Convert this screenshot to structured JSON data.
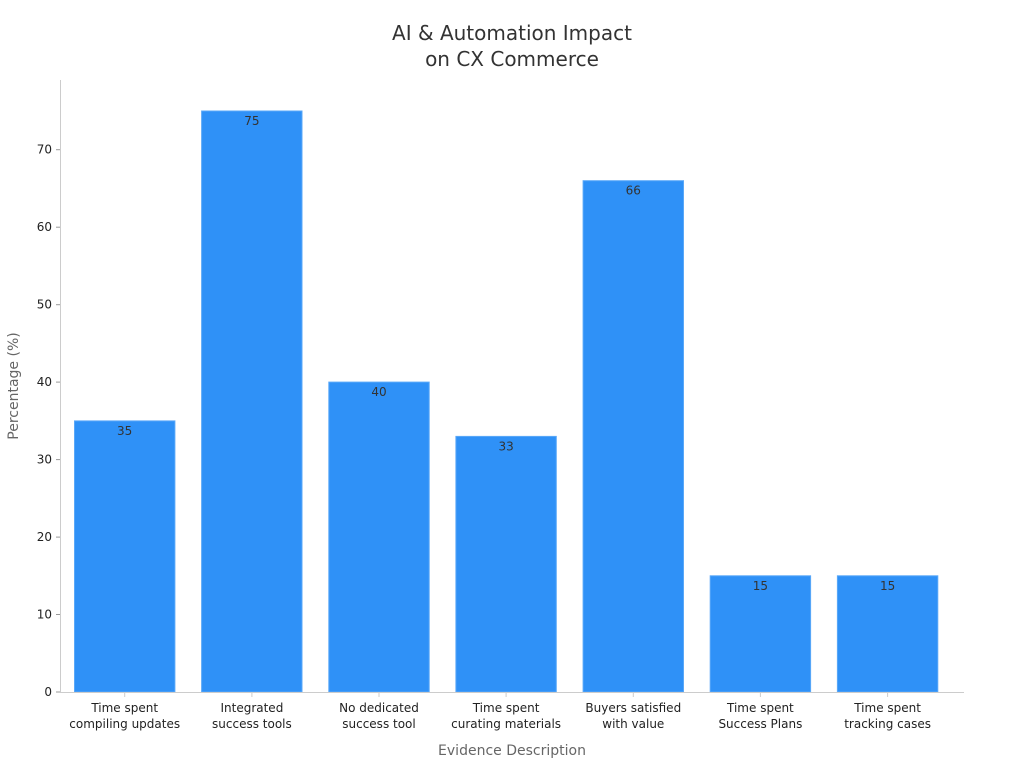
{
  "chart_data": {
    "type": "bar",
    "title": [
      "AI & Automation Impact",
      "on CX Commerce"
    ],
    "xlabel": "Evidence Description",
    "ylabel": "Percentage (%)",
    "categories": [
      [
        "Time spent",
        "compiling updates"
      ],
      [
        "Integrated",
        "success tools"
      ],
      [
        "No dedicated",
        "success tool"
      ],
      [
        "Time spent",
        "curating materials"
      ],
      [
        "Buyers satisfied",
        "with value"
      ],
      [
        "Time spent",
        "Success Plans"
      ],
      [
        "Time spent",
        "tracking cases"
      ]
    ],
    "values": [
      35,
      75,
      40,
      33,
      66,
      15,
      15
    ],
    "data_labels": [
      "35",
      "75",
      "40",
      "33",
      "66",
      "15",
      "15"
    ],
    "yticks": [
      0,
      10,
      20,
      30,
      40,
      50,
      60,
      70
    ],
    "ylim": [
      0,
      79
    ],
    "bar_color": "#2f91f7",
    "grid": false,
    "legend": "none"
  }
}
